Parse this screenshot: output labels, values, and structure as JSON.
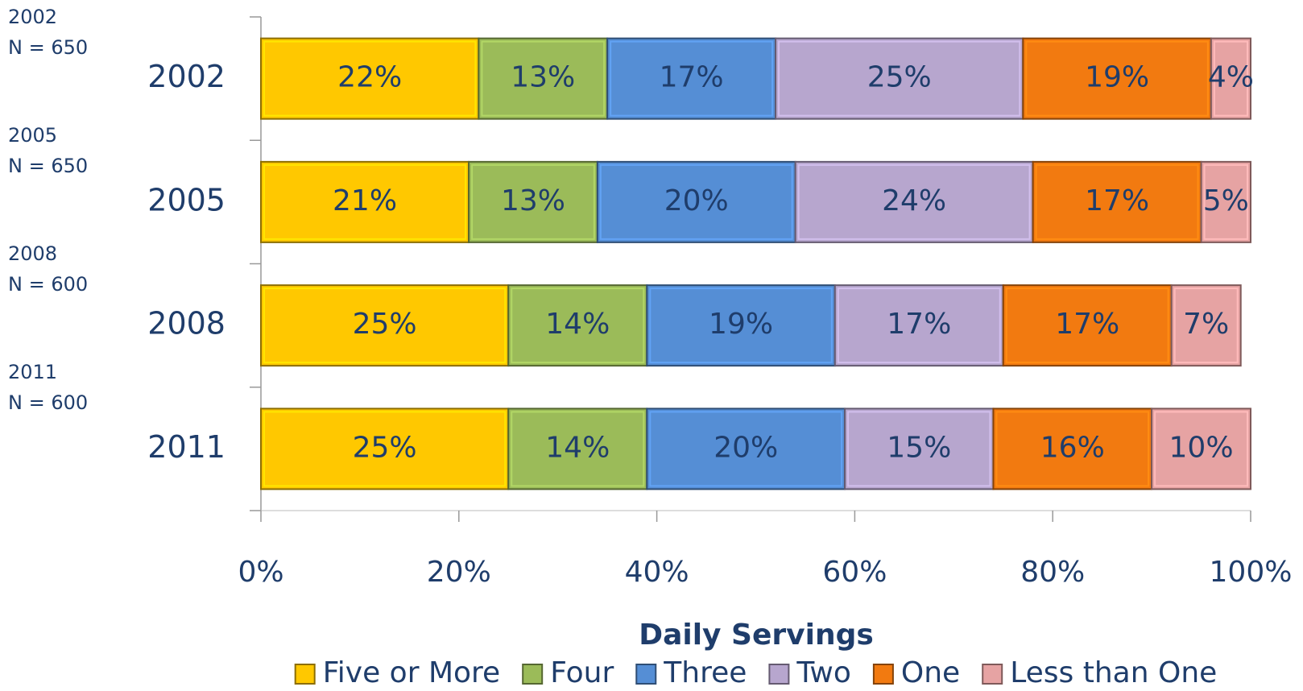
{
  "chart_data": {
    "type": "stacked-bar-horizontal",
    "x_axis_label": "Daily Servings",
    "categories": [
      "2002",
      "2005",
      "2008",
      "2011"
    ],
    "annotations": [
      [
        "2002",
        "N = 650"
      ],
      [
        "2005",
        "N = 650"
      ],
      [
        "2008",
        "N = 600"
      ],
      [
        "2011",
        "N = 600"
      ]
    ],
    "series": [
      {
        "name": "Five or More",
        "color": "#FFC800",
        "values": [
          22,
          21,
          25,
          25
        ],
        "value_labels": [
          "22%",
          "21%",
          "25%",
          "25%"
        ]
      },
      {
        "name": "Four",
        "color": "#9BBB59",
        "values": [
          13,
          13,
          14,
          14
        ],
        "value_labels": [
          "13%",
          "13%",
          "14%",
          "14%"
        ]
      },
      {
        "name": "Three",
        "color": "#558ED5",
        "values": [
          17,
          20,
          19,
          20
        ],
        "value_labels": [
          "17%",
          "20%",
          "19%",
          "20%"
        ]
      },
      {
        "name": "Two",
        "color": "#B7A6CE",
        "values": [
          25,
          24,
          17,
          15
        ],
        "value_labels": [
          "25%",
          "24%",
          "17%",
          "15%"
        ]
      },
      {
        "name": "One",
        "color": "#F27A10",
        "values": [
          19,
          17,
          17,
          16
        ],
        "value_labels": [
          "19%",
          "17%",
          "17%",
          "16%"
        ]
      },
      {
        "name": "Less than One",
        "color": "#E6A3A3",
        "values": [
          4,
          5,
          7,
          10
        ],
        "value_labels": [
          "4%",
          "5%",
          "7%",
          "10%"
        ]
      }
    ],
    "xlim": [
      0,
      100
    ],
    "xticks": [
      {
        "value": 0,
        "label": "0%"
      },
      {
        "value": 20,
        "label": "20%"
      },
      {
        "value": 40,
        "label": "40%"
      },
      {
        "value": 60,
        "label": "60%"
      },
      {
        "value": 80,
        "label": "80%"
      },
      {
        "value": 100,
        "label": "100%"
      }
    ]
  }
}
